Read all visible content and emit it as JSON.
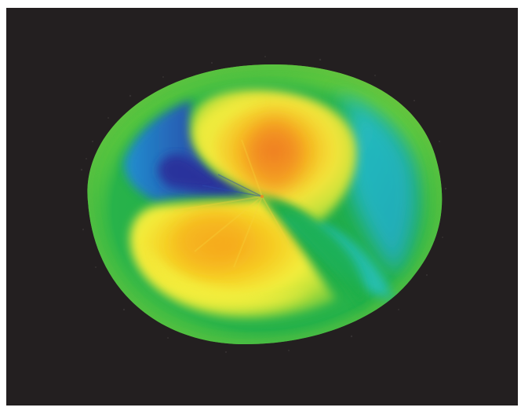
{
  "image": {
    "kind": "false-color surface render",
    "colors": {
      "background": "#231f20",
      "frame": "#ffffff",
      "palette": [
        "#2b2f9a",
        "#1f8fd8",
        "#28c3d6",
        "#19a84b",
        "#8fd43a",
        "#f3ee3c",
        "#f6c21f",
        "#f08a22"
      ]
    }
  }
}
